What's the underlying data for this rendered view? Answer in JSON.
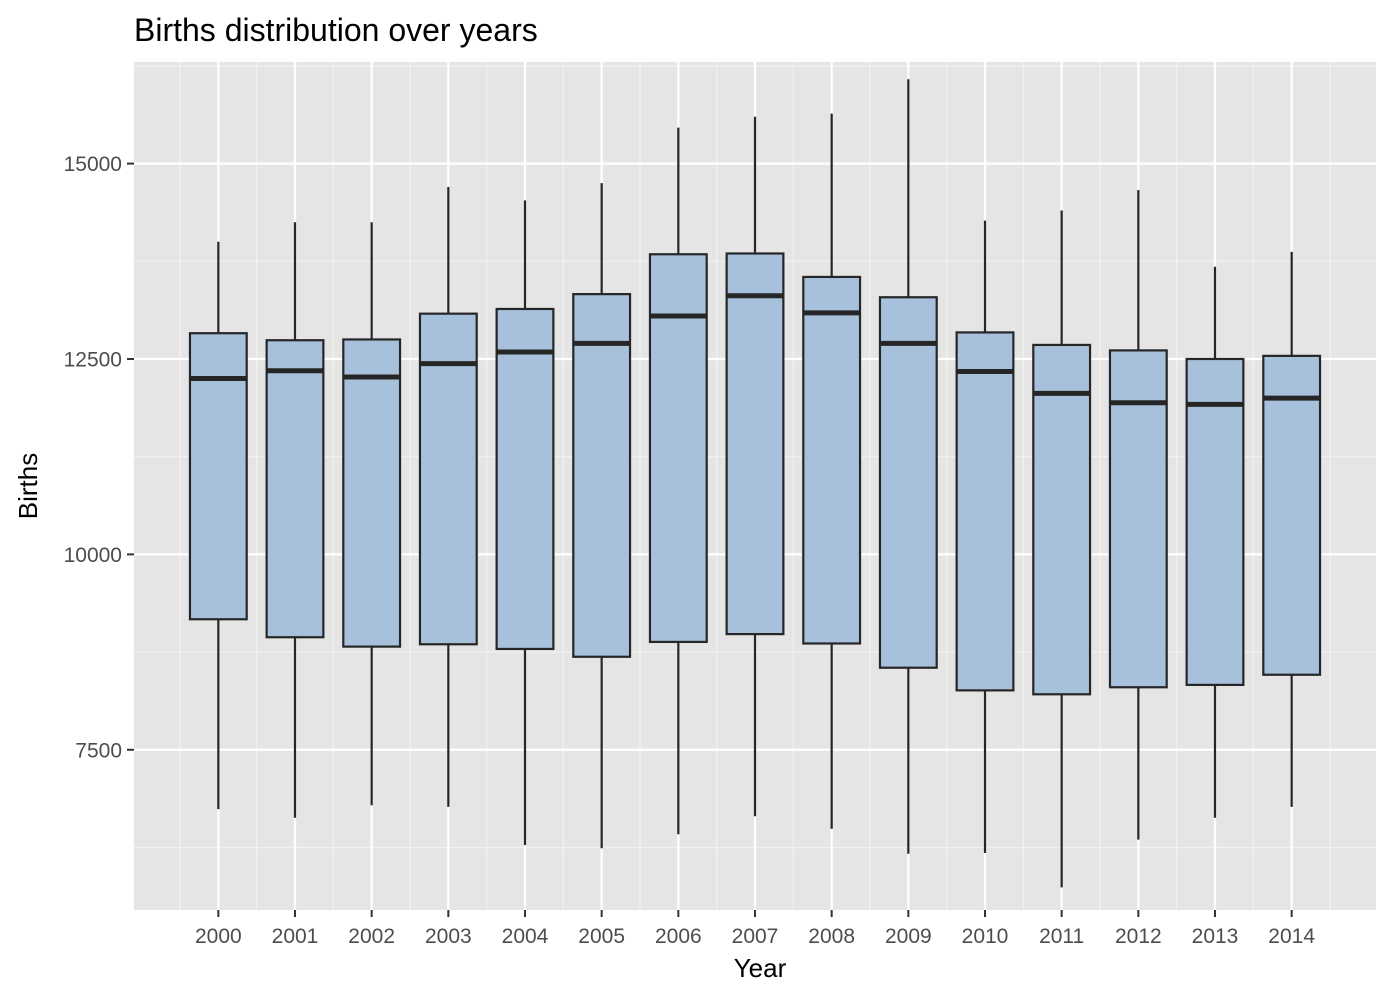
{
  "chart_data": {
    "type": "boxplot",
    "title": "Births distribution over years",
    "xlabel": "Year",
    "ylabel": "Births",
    "ylim": [
      5450,
      16300
    ],
    "yticks": [
      7500,
      10000,
      12500,
      15000
    ],
    "ytick_labels": [
      "7500",
      "10000",
      "12500",
      "15000"
    ],
    "grid": true,
    "colors": {
      "panel_bg": "#e5e5e5",
      "grid_major": "#ffffff",
      "grid_minor": "#f2f2f2",
      "box_fill": "#a7c1dc",
      "box_stroke": "#262626"
    },
    "categories": [
      "2000",
      "2001",
      "2002",
      "2003",
      "2004",
      "2005",
      "2006",
      "2007",
      "2008",
      "2009",
      "2010",
      "2011",
      "2012",
      "2013",
      "2014"
    ],
    "boxes": [
      {
        "year": "2000",
        "min": 6740,
        "q1": 9170,
        "median": 12250,
        "q3": 12830,
        "max": 14000
      },
      {
        "year": "2001",
        "min": 6630,
        "q1": 8940,
        "median": 12350,
        "q3": 12740,
        "max": 14250
      },
      {
        "year": "2002",
        "min": 6790,
        "q1": 8820,
        "median": 12270,
        "q3": 12750,
        "max": 14250
      },
      {
        "year": "2003",
        "min": 6770,
        "q1": 8850,
        "median": 12440,
        "q3": 13080,
        "max": 14700
      },
      {
        "year": "2004",
        "min": 6280,
        "q1": 8790,
        "median": 12590,
        "q3": 13140,
        "max": 14530
      },
      {
        "year": "2005",
        "min": 6240,
        "q1": 8690,
        "median": 12700,
        "q3": 13330,
        "max": 14750
      },
      {
        "year": "2006",
        "min": 6420,
        "q1": 8880,
        "median": 13050,
        "q3": 13840,
        "max": 15460
      },
      {
        "year": "2007",
        "min": 6650,
        "q1": 8980,
        "median": 13310,
        "q3": 13850,
        "max": 15600
      },
      {
        "year": "2008",
        "min": 6490,
        "q1": 8860,
        "median": 13090,
        "q3": 13550,
        "max": 15640
      },
      {
        "year": "2009",
        "min": 6170,
        "q1": 8550,
        "median": 12700,
        "q3": 13290,
        "max": 16080
      },
      {
        "year": "2010",
        "min": 6180,
        "q1": 8260,
        "median": 12340,
        "q3": 12840,
        "max": 14270
      },
      {
        "year": "2011",
        "min": 5740,
        "q1": 8210,
        "median": 12060,
        "q3": 12680,
        "max": 14400
      },
      {
        "year": "2012",
        "min": 6350,
        "q1": 8300,
        "median": 11940,
        "q3": 12610,
        "max": 14660
      },
      {
        "year": "2013",
        "min": 6630,
        "q1": 8330,
        "median": 11920,
        "q3": 12500,
        "max": 13680
      },
      {
        "year": "2014",
        "min": 6770,
        "q1": 8460,
        "median": 12000,
        "q3": 12540,
        "max": 13870
      }
    ]
  }
}
